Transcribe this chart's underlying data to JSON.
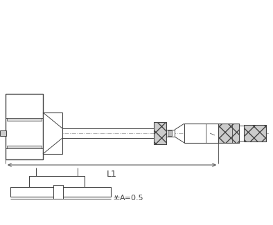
{
  "bg_color": "#ffffff",
  "lc": "#555555",
  "dc": "#444444",
  "dash_color": "#aaaaaa",
  "L1_label": "L1",
  "A_label": "A=0.5",
  "label_fontsize": 9
}
